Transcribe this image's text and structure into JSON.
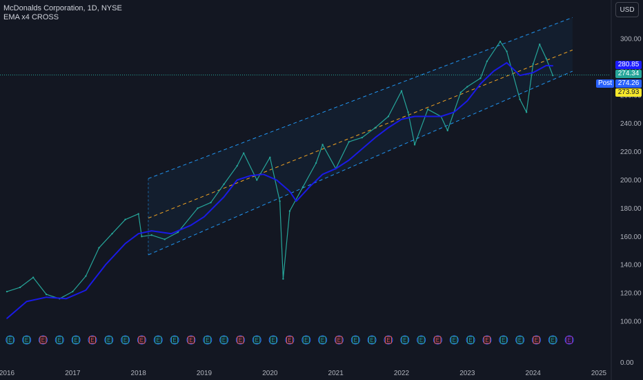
{
  "header": {
    "symbol_line": "McDonalds Corporation, 1D, NYSE",
    "indicator_line": "EMA x4 CROSS"
  },
  "currency_button": "USD",
  "session_label": "Post",
  "price_tags": [
    {
      "label": "280.85",
      "value": 280.85,
      "bg": "#1c1cff",
      "fg": "#ffffff"
    },
    {
      "label": "274.34",
      "value": 274.34,
      "bg": "#26a69a",
      "fg": "#ffffff"
    },
    {
      "label": "274.26",
      "value": 274.26,
      "bg": "#2962ff",
      "fg": "#ffffff"
    },
    {
      "label": "273.93",
      "value": 273.93,
      "bg": "#f5e72c",
      "fg": "#131722"
    }
  ],
  "earnings_marker_label": "E",
  "chart_data": {
    "type": "line",
    "title": "McDonalds Corporation, 1D, NYSE",
    "xlabel": "",
    "ylabel": "",
    "x_ticks": [
      "2016",
      "2017",
      "2018",
      "2019",
      "2020",
      "2021",
      "2022",
      "2023",
      "2024",
      "2025"
    ],
    "y_ticks": [
      "100.00",
      "120.00",
      "140.00",
      "160.00",
      "180.00",
      "200.00",
      "220.00",
      "240.00",
      "260.00",
      "280.00",
      "300.00"
    ],
    "y_bottom_label": "0.00",
    "xlim": [
      2016.0,
      2025.3
    ],
    "ylim": [
      80,
      320
    ],
    "grid": false,
    "series": [
      {
        "name": "",
        "color": "#26a69a",
        "x": [
          2016.0,
          2016.2,
          2016.4,
          2016.6,
          2016.8,
          2017.0,
          2017.2,
          2017.4,
          2017.6,
          2017.8,
          2018.0,
          2018.05,
          2018.2,
          2018.4,
          2018.6,
          2018.9,
          2019.1,
          2019.3,
          2019.5,
          2019.6,
          2019.8,
          2020.0,
          2020.15,
          2020.2,
          2020.3,
          2020.5,
          2020.7,
          2020.8,
          2021.0,
          2021.2,
          2021.4,
          2021.6,
          2021.8,
          2022.0,
          2022.1,
          2022.2,
          2022.4,
          2022.6,
          2022.7,
          2022.9,
          2023.0,
          2023.2,
          2023.3,
          2023.5,
          2023.6,
          2023.8,
          2023.9,
          2024.0,
          2024.1,
          2024.2,
          2024.3
        ],
        "y": [
          121,
          124,
          131,
          119,
          116,
          121,
          132,
          152,
          162,
          172,
          176,
          160,
          161,
          158,
          163,
          180,
          184,
          197,
          210,
          219,
          200,
          216,
          185,
          130,
          178,
          195,
          212,
          225,
          208,
          227,
          230,
          237,
          245,
          263,
          248,
          225,
          250,
          245,
          235,
          262,
          266,
          272,
          284,
          298,
          291,
          257,
          248,
          282,
          296,
          286,
          274
        ]
      },
      {
        "name": "",
        "color": "#1a1ae6",
        "x": [
          2016.0,
          2016.3,
          2016.6,
          2016.9,
          2017.2,
          2017.5,
          2017.8,
          2018.0,
          2018.2,
          2018.5,
          2018.8,
          2019.0,
          2019.3,
          2019.5,
          2019.7,
          2019.9,
          2020.1,
          2020.3,
          2020.4,
          2020.6,
          2020.8,
          2021.0,
          2021.2,
          2021.4,
          2021.6,
          2021.8,
          2022.0,
          2022.2,
          2022.4,
          2022.6,
          2022.8,
          2023.0,
          2023.2,
          2023.4,
          2023.6,
          2023.8,
          2024.0,
          2024.2,
          2024.3
        ],
        "y": [
          102,
          114,
          117,
          116,
          122,
          140,
          155,
          162,
          164,
          162,
          168,
          174,
          188,
          200,
          203,
          204,
          200,
          192,
          185,
          195,
          204,
          208,
          214,
          222,
          230,
          237,
          243,
          245,
          245,
          245,
          248,
          256,
          268,
          277,
          283,
          274,
          276,
          281,
          280.85
        ]
      }
    ],
    "channel": {
      "x_start": 2018.15,
      "x_end": 2024.6,
      "lower_start": 147,
      "lower_end": 277,
      "upper_start": 201,
      "upper_end": 315,
      "mid_start": 173,
      "mid_end": 292,
      "line_color": "#2196f3",
      "mid_color": "#f5a623"
    },
    "last_price": 274.34,
    "earnings_dates": [
      2016.05,
      2016.3,
      2016.55,
      2016.8,
      2017.05,
      2017.3,
      2017.55,
      2017.8,
      2018.05,
      2018.3,
      2018.55,
      2018.8,
      2019.05,
      2019.3,
      2019.55,
      2019.8,
      2020.05,
      2020.3,
      2020.55,
      2020.8,
      2021.05,
      2021.3,
      2021.55,
      2021.8,
      2022.05,
      2022.3,
      2022.55,
      2022.8,
      2023.05,
      2023.3,
      2023.55,
      2023.8,
      2024.05,
      2024.3,
      2024.55
    ]
  }
}
